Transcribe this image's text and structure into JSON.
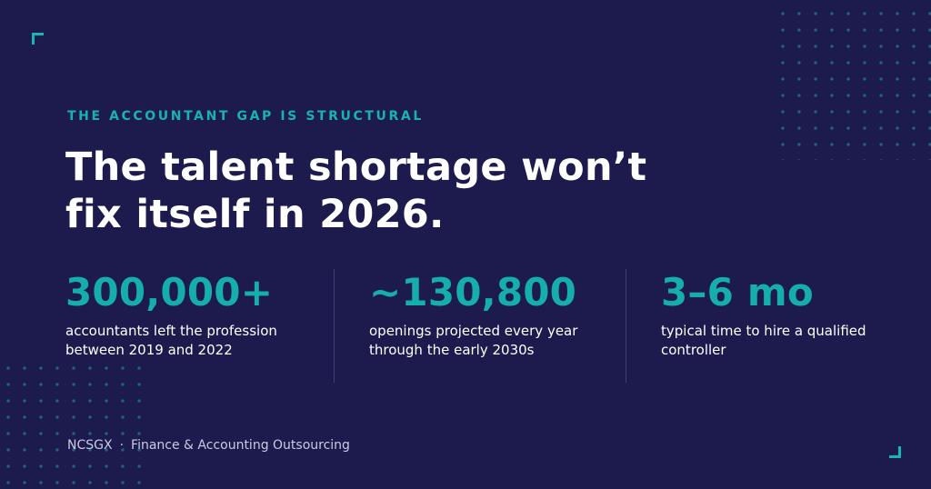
{
  "eyebrow": "THE ACCOUNTANT GAP IS STRUCTURAL",
  "headline": {
    "line1": "The talent shortage won’t",
    "line2": "fix itself in 2026."
  },
  "stats": [
    {
      "value": "300,000+",
      "description": "accountants left the profession between 2019 and 2022"
    },
    {
      "value": "~130,800",
      "description": "openings projected every year through the early 2030s"
    },
    {
      "value": "3–6 mo",
      "description": "typical time to hire a qualified controller"
    }
  ],
  "footer": {
    "brand": "NCSGX",
    "separator": "·",
    "tagline": "Finance & Accounting Outsourcing"
  },
  "colors": {
    "background": "#1d1b4d",
    "accent": "#16aeab",
    "text": "#ffffff",
    "muted": "#c9cbe3"
  }
}
